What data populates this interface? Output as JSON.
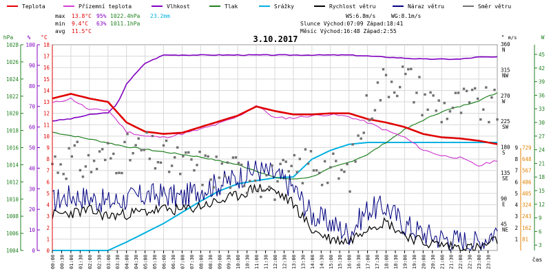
{
  "chart_data": {
    "type": "line",
    "title": "3.10.2017",
    "xlabel": "čas",
    "legend": [
      {
        "name": "Teplota",
        "color": "#e00000"
      },
      {
        "name": "Přízemní teplota",
        "color": "#d040d0"
      },
      {
        "name": "Vlhkost",
        "color": "#8000c0"
      },
      {
        "name": "Tlak",
        "color": "#208020"
      },
      {
        "name": "Srážky",
        "color": "#00b0e0"
      },
      {
        "name": "Rychlost větru",
        "color": "#000000"
      },
      {
        "name": "Náraz větru",
        "color": "#000080"
      },
      {
        "name": "Směr větru",
        "color": "#707070"
      }
    ],
    "stats": {
      "max_label": "max",
      "min_label": "min",
      "avg_label": "avg",
      "max_temp": "13.8°C",
      "max_hum": "95%",
      "max_press": "1022.4hPa",
      "max_rain": "23.2mm",
      "min_temp": "9.4°C",
      "min_hum": "63%",
      "min_press": "1011.1hPa",
      "avg_temp": "11.5°C"
    },
    "info": {
      "ws": "WS:6.8m/s",
      "wg": "WG:8.1m/s",
      "sun": "Slunce Východ:07:09  Západ:18:41",
      "moon": "Měsíc  Východ:16:48  Západ:2:55"
    },
    "axes": {
      "hpa": {
        "unit": "hPa",
        "ticks": [
          "1028",
          "1026",
          "1024",
          "1022",
          "1020",
          "1018",
          "1016",
          "1014",
          "1012",
          "1010",
          "1008",
          "1006",
          "1004"
        ]
      },
      "pct": {
        "unit": "%",
        "ticks": [
          "100",
          "90",
          "80",
          "70",
          "60",
          "50",
          "40",
          "30",
          "20",
          "10",
          "0"
        ]
      },
      "temp": {
        "unit": "°C",
        "ticks": [
          "18",
          "17",
          "16",
          "15",
          "14",
          "13",
          "12",
          "11",
          "10",
          "9",
          "8",
          "7",
          "6",
          "5",
          "4",
          "3",
          "2",
          "1",
          "0"
        ]
      },
      "dir": {
        "unit": "°",
        "ticks": [
          {
            "deg": "360",
            "card": "N"
          },
          {
            "deg": "315",
            "card": "NW"
          },
          {
            "deg": "270",
            "card": "W"
          },
          {
            "deg": "225",
            "card": "SW"
          },
          {
            "deg": "180",
            "card": "S"
          },
          {
            "deg": "135",
            "card": "SE"
          },
          {
            "deg": "90",
            "card": "E"
          },
          {
            "deg": "45",
            "card": "NE"
          }
        ]
      },
      "ms": {
        "unit": "m/s",
        "ticks": [
          "9",
          "8",
          "7",
          "6",
          "5",
          "4",
          "3",
          "2",
          "1"
        ]
      },
      "wind": {
        "unit": "W",
        "ticks": [
          "45",
          "42",
          "39",
          "36",
          "33",
          "30",
          "27",
          "24",
          "21",
          "18",
          "15",
          "12",
          "9",
          "6",
          "3"
        ]
      },
      "sol": {
        "ticks": [
          "729",
          "648",
          "567",
          "486",
          "405",
          "324",
          "243",
          "162",
          "81"
        ]
      }
    },
    "x_labels": [
      "00:00",
      "00:30",
      "01:00",
      "01:30",
      "02:00",
      "02:30",
      "03:00",
      "03:30",
      "04:00",
      "04:30",
      "05:00",
      "05:30",
      "06:00",
      "06:30",
      "07:00",
      "07:30",
      "08:00",
      "08:30",
      "09:00",
      "09:30",
      "10:00",
      "10:30",
      "11:00",
      "11:30",
      "12:00",
      "12:30",
      "13:00",
      "13:30",
      "14:00",
      "14:30",
      "15:00",
      "15:30",
      "16:00",
      "16:30",
      "17:00",
      "17:30",
      "18:00",
      "18:30",
      "19:00",
      "19:30",
      "20:00",
      "20:30",
      "21:00",
      "21:30",
      "22:00",
      "22:30",
      "23:00",
      "23:30"
    ],
    "series": [
      {
        "name": "Teplota",
        "unit": "°C",
        "x": [
          0,
          1,
          2,
          3,
          4,
          5,
          6,
          7,
          8,
          9,
          10,
          11,
          12,
          13,
          14,
          15,
          16,
          17,
          18,
          19,
          20,
          21,
          22,
          23,
          24
        ],
        "values": [
          13.3,
          13.7,
          13.3,
          13.0,
          11.2,
          10.4,
          10.2,
          10.3,
          10.8,
          11.3,
          11.8,
          12.6,
          12.2,
          11.9,
          11.9,
          12.0,
          12.0,
          11.5,
          11.2,
          10.8,
          10.2,
          9.9,
          9.8,
          9.6,
          9.3
        ]
      },
      {
        "name": "Přízemní teplota",
        "unit": "°C",
        "x": [
          0,
          1,
          2,
          3,
          4,
          5,
          6,
          7,
          8,
          9,
          10,
          11,
          12,
          13,
          14,
          15,
          16,
          17,
          18,
          19,
          20,
          21,
          22,
          23,
          24
        ],
        "values": [
          12.9,
          13.3,
          12.3,
          12.3,
          10.4,
          10.0,
          9.9,
          10.2,
          10.6,
          11.1,
          11.7,
          12.7,
          11.6,
          11.6,
          11.8,
          11.9,
          11.7,
          11.2,
          10.5,
          9.9,
          8.8,
          8.3,
          8.1,
          7.4,
          7.9
        ]
      },
      {
        "name": "Vlhkost",
        "unit": "%",
        "x": [
          0,
          1,
          2,
          3,
          3.5,
          4,
          5,
          6,
          8,
          10,
          12,
          14,
          16,
          18,
          20,
          22,
          23,
          24
        ],
        "values": [
          63,
          64,
          66,
          67,
          71,
          81,
          91,
          95,
          95,
          95,
          95,
          95,
          95,
          94,
          93,
          93,
          94,
          94
        ]
      },
      {
        "name": "Tlak",
        "unit": "hPa",
        "x": [
          0,
          2,
          4,
          6,
          8,
          10,
          11,
          12,
          13,
          14,
          15,
          16,
          17,
          18,
          19,
          20,
          21,
          22,
          23,
          24
        ],
        "values": [
          1017.8,
          1017.0,
          1016.1,
          1015.5,
          1014.9,
          1014.0,
          1013.3,
          1012.5,
          1012.3,
          1012.6,
          1013.6,
          1014.3,
          1015.2,
          1016.6,
          1018.1,
          1019.2,
          1020.2,
          1020.8,
          1021.5,
          1022.4
        ]
      },
      {
        "name": "Srážky",
        "unit": "mm",
        "x": [
          0,
          3,
          4,
          5,
          6,
          7,
          8,
          9,
          10,
          11,
          12,
          13,
          14,
          15,
          16,
          17,
          24
        ],
        "values": [
          0,
          0,
          1.8,
          3.8,
          5.8,
          8.2,
          10.6,
          12.8,
          14.3,
          15.0,
          15.6,
          15.8,
          19.6,
          21.5,
          22.8,
          23.2,
          23.2
        ]
      },
      {
        "name": "Rychlost větru",
        "unit": "m/s",
        "x": [
          0,
          1,
          2,
          3,
          4,
          5,
          6,
          7,
          8,
          9,
          10,
          11,
          12,
          13,
          14,
          15,
          16,
          17,
          18,
          19,
          20,
          21,
          22,
          23,
          24
        ],
        "values": [
          3.1,
          3.3,
          3.5,
          3.0,
          3.2,
          3.4,
          3.6,
          3.5,
          3.9,
          4.3,
          4.8,
          5.5,
          5.2,
          4.1,
          1.8,
          1.0,
          0.8,
          2.1,
          2.5,
          1.4,
          0.7,
          0.5,
          0.3,
          0.2,
          0.9
        ]
      },
      {
        "name": "Náraz větru",
        "unit": "m/s",
        "x": [
          0,
          1,
          2,
          3,
          4,
          5,
          6,
          7,
          8,
          9,
          10,
          11,
          12,
          13,
          14,
          15,
          16,
          17,
          18,
          19,
          20,
          21,
          22,
          23,
          24
        ],
        "values": [
          4.3,
          4.8,
          4.6,
          4.2,
          4.5,
          4.8,
          4.9,
          4.6,
          5.4,
          5.8,
          6.4,
          7.1,
          6.6,
          5.5,
          3.1,
          2.4,
          1.5,
          3.6,
          3.8,
          2.3,
          1.5,
          1.1,
          0.9,
          0.7,
          1.8
        ]
      },
      {
        "name": "Směr větru",
        "unit": "°",
        "x": [
          0,
          1,
          2,
          3,
          4,
          5,
          6,
          7,
          8,
          9,
          10,
          11,
          12,
          13,
          14,
          15,
          16,
          17,
          18,
          19,
          20,
          21,
          22,
          23,
          24
        ],
        "values": [
          155,
          160,
          150,
          165,
          170,
          175,
          160,
          150,
          145,
          140,
          135,
          130,
          120,
          135,
          160,
          140,
          130,
          250,
          300,
          305,
          270,
          250,
          255,
          255,
          245
        ]
      }
    ]
  }
}
